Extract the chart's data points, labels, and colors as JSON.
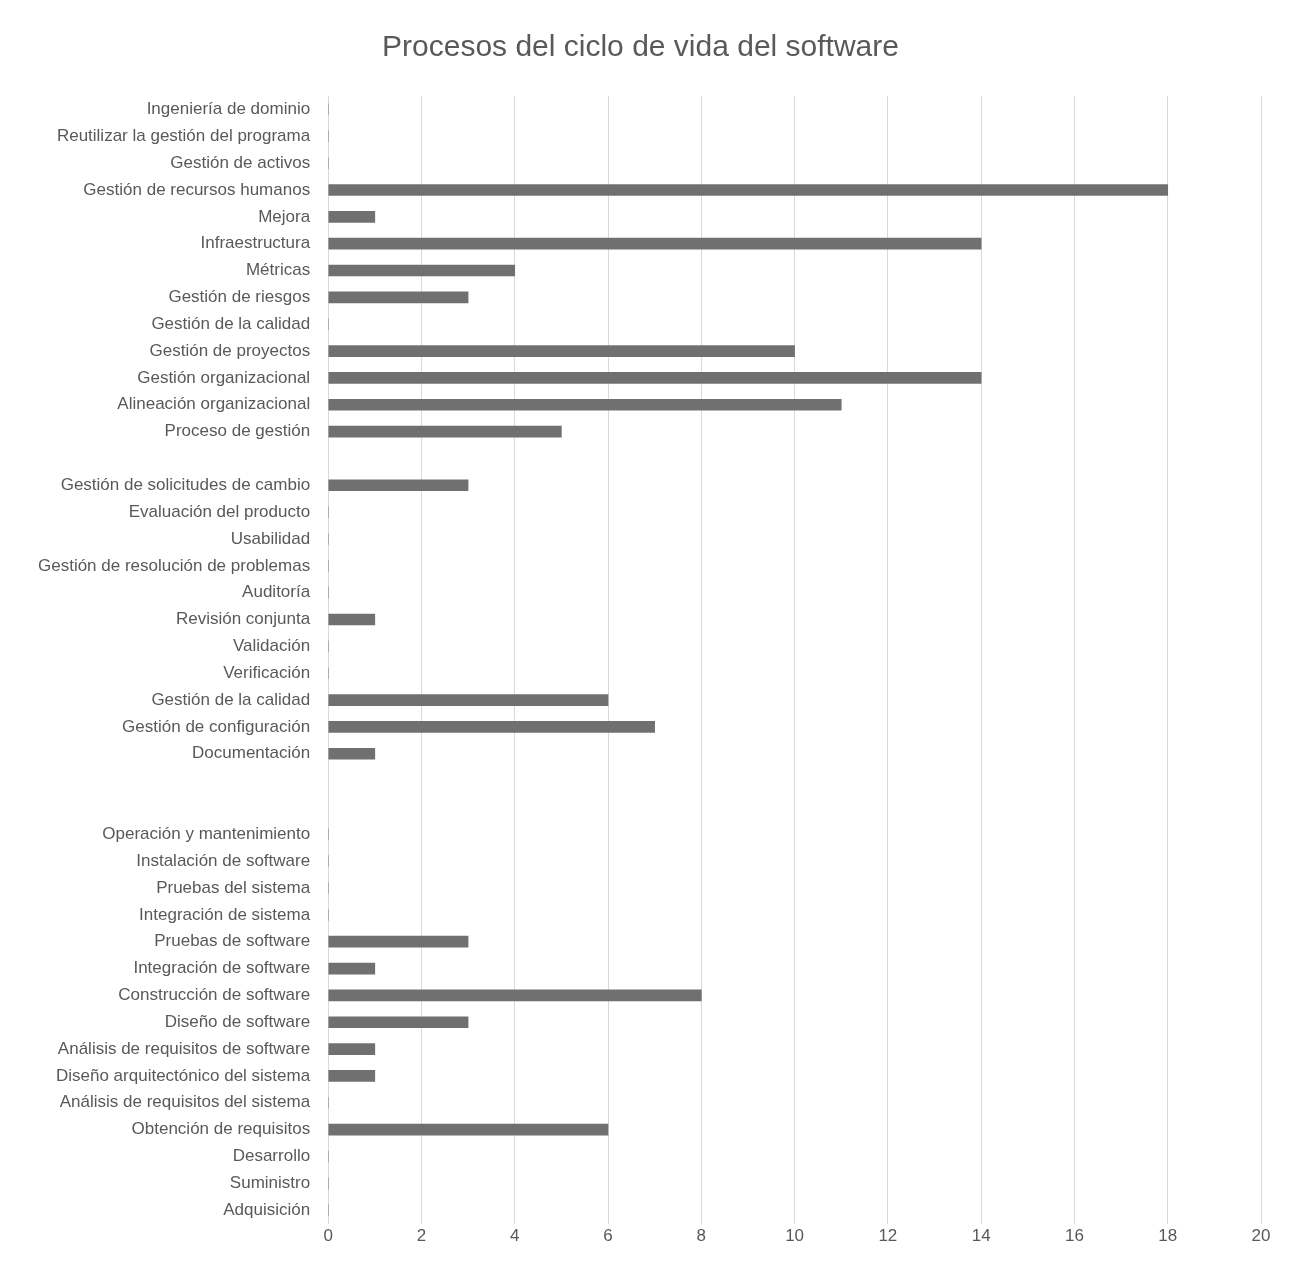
{
  "chart_data": {
    "type": "bar",
    "orientation": "horizontal",
    "title": "Procesos del ciclo de vida del software",
    "categories": [
      "Ingeniería de dominio",
      "Reutilizar la gestión del programa",
      "Gestión de activos",
      "Gestión de recursos humanos",
      "Mejora",
      "Infraestructura",
      "Métricas",
      "Gestión de riesgos",
      "Gestión de la calidad",
      "Gestión de proyectos",
      "Gestión organizacional",
      "Alineación organizacional",
      "Proceso de gestión",
      null,
      "Gestión de solicitudes de cambio",
      "Evaluación del producto",
      "Usabilidad",
      "Gestión de resolución de problemas",
      "Auditoría",
      "Revisión conjunta",
      "Validación",
      "Verificación",
      "Gestión de la calidad",
      "Gestión de configuración",
      "Documentación",
      null,
      null,
      "Operación y mantenimiento",
      "Instalación de software",
      "Pruebas del sistema",
      "Integración de sistema",
      "Pruebas de software",
      "Integración de software",
      "Construcción de software",
      "Diseño de software",
      "Análisis de requisitos de software",
      "Diseño arquitectónico del sistema",
      "Análisis de requisitos del sistema",
      "Obtención de requisitos",
      "Desarrollo",
      "Suministro",
      "Adquisición"
    ],
    "values": [
      0,
      0,
      0,
      18,
      1,
      14,
      4,
      3,
      0,
      10,
      14,
      11,
      5,
      null,
      3,
      0,
      0,
      0,
      0,
      1,
      0,
      0,
      6,
      7,
      1,
      null,
      null,
      0,
      0,
      0,
      0,
      3,
      1,
      8,
      3,
      1,
      1,
      0,
      6,
      0,
      0,
      0
    ],
    "color": "#707070",
    "xlim": [
      0,
      20
    ],
    "xticks": [
      0,
      2,
      4,
      6,
      8,
      10,
      12,
      14,
      16,
      18,
      20
    ],
    "grid": "x",
    "legend": false
  }
}
